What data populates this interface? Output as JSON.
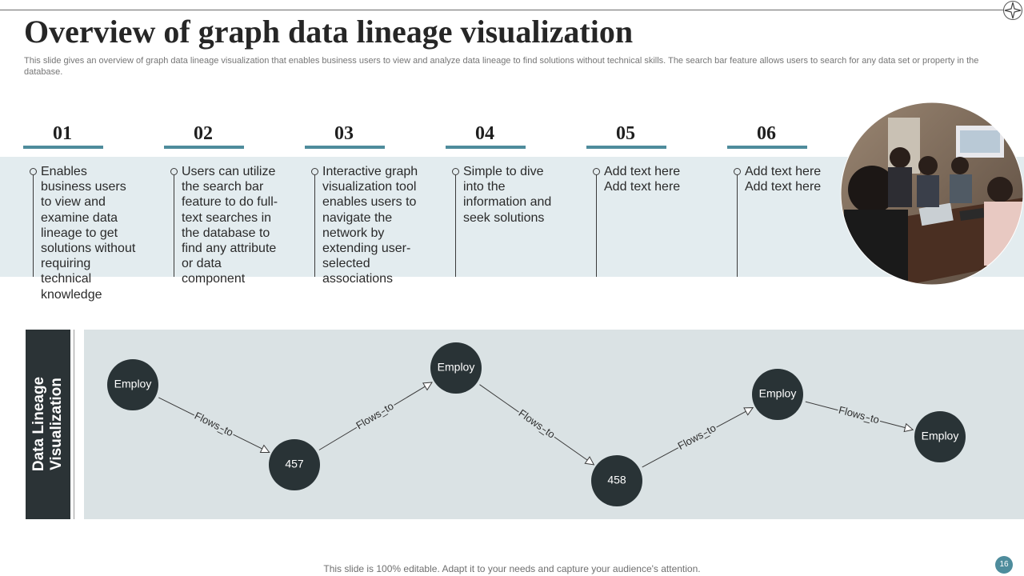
{
  "title": "Overview of graph data lineage visualization",
  "subtitle": "This slide gives an overview of graph data lineage visualization that enables business users to view and analyze data lineage to find solutions without technical skills. The search bar feature allows users to search for any data set or property in the database.",
  "steps": [
    {
      "number": "01",
      "text": "Enables business users to view and examine data lineage to get solutions without requiring technical knowledge"
    },
    {
      "number": "02",
      "text": "Users can utilize the search bar feature to do full-text searches in the database to find any attribute or data component"
    },
    {
      "number": "03",
      "text": "Interactive graph visualization tool enables users to navigate the network by extending user-selected associations"
    },
    {
      "number": "04",
      "text": "Simple to dive into the information and seek solutions"
    },
    {
      "number": "05",
      "text": "Add text here Add text here"
    },
    {
      "number": "06",
      "text": "Add text here Add text here"
    }
  ],
  "photo": {
    "icon": "meeting-photo"
  },
  "graph": {
    "side_label_line1": "Data Lineage",
    "side_label_line2": "Visualization",
    "nodes": [
      "Employ",
      "457",
      "Employ",
      "458",
      "Employ",
      "Employ"
    ],
    "edge_label": "Flows_to",
    "node_color": "#293336",
    "edge_color": "#3a3a3a"
  },
  "footer": "This slide is 100% editable. Adapt it to your needs and capture your audience's attention.",
  "page_number": "16",
  "colors": {
    "accent": "#4e8c9c",
    "band": "#e3ecef",
    "graph_bg": "#dae2e4",
    "panel": "#2b3336"
  }
}
